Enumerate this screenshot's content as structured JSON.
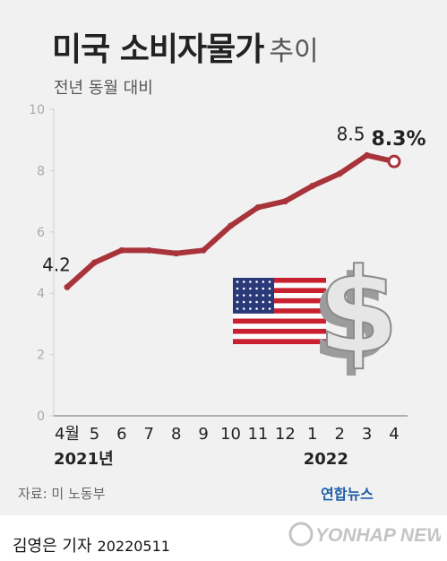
{
  "title": "미국 소비자물가",
  "title_suffix": "추이",
  "subtitle": "전년 동월 대비",
  "source": "자료: 미 노동부",
  "brand": "연합뉴스",
  "reporter": "김영은 기자",
  "date": "20220511",
  "watermark_text": "YONHAP NEWS",
  "colors": {
    "line": "#a8333b",
    "background": "#f1f1f1",
    "axis_text": "#aaaaaa"
  },
  "illustration": {
    "flag": "us-flag-icon",
    "symbol": "dollar-sign-icon"
  },
  "chart_data": {
    "type": "line",
    "categories": [
      "4월",
      "5",
      "6",
      "7",
      "8",
      "9",
      "10",
      "11",
      "12",
      "1",
      "2",
      "3",
      "4"
    ],
    "year_labels": [
      {
        "label": "2021년",
        "at_index": 0
      },
      {
        "label": "2022",
        "at_index": 9
      }
    ],
    "series": [
      {
        "values": [
          4.2,
          5.0,
          5.4,
          5.4,
          5.3,
          5.4,
          6.2,
          6.8,
          7.0,
          7.5,
          7.9,
          8.5,
          8.3
        ]
      }
    ],
    "data_labels": [
      {
        "index": 0,
        "text": "4.2"
      },
      {
        "index": 11,
        "text": "8.5"
      },
      {
        "index": 12,
        "text": "8.3%",
        "emphasis": true
      }
    ],
    "yticks": [
      0,
      2,
      4,
      6,
      8,
      10
    ],
    "ylim": [
      0,
      10
    ],
    "grid": false,
    "xlabel": "",
    "ylabel": ""
  }
}
